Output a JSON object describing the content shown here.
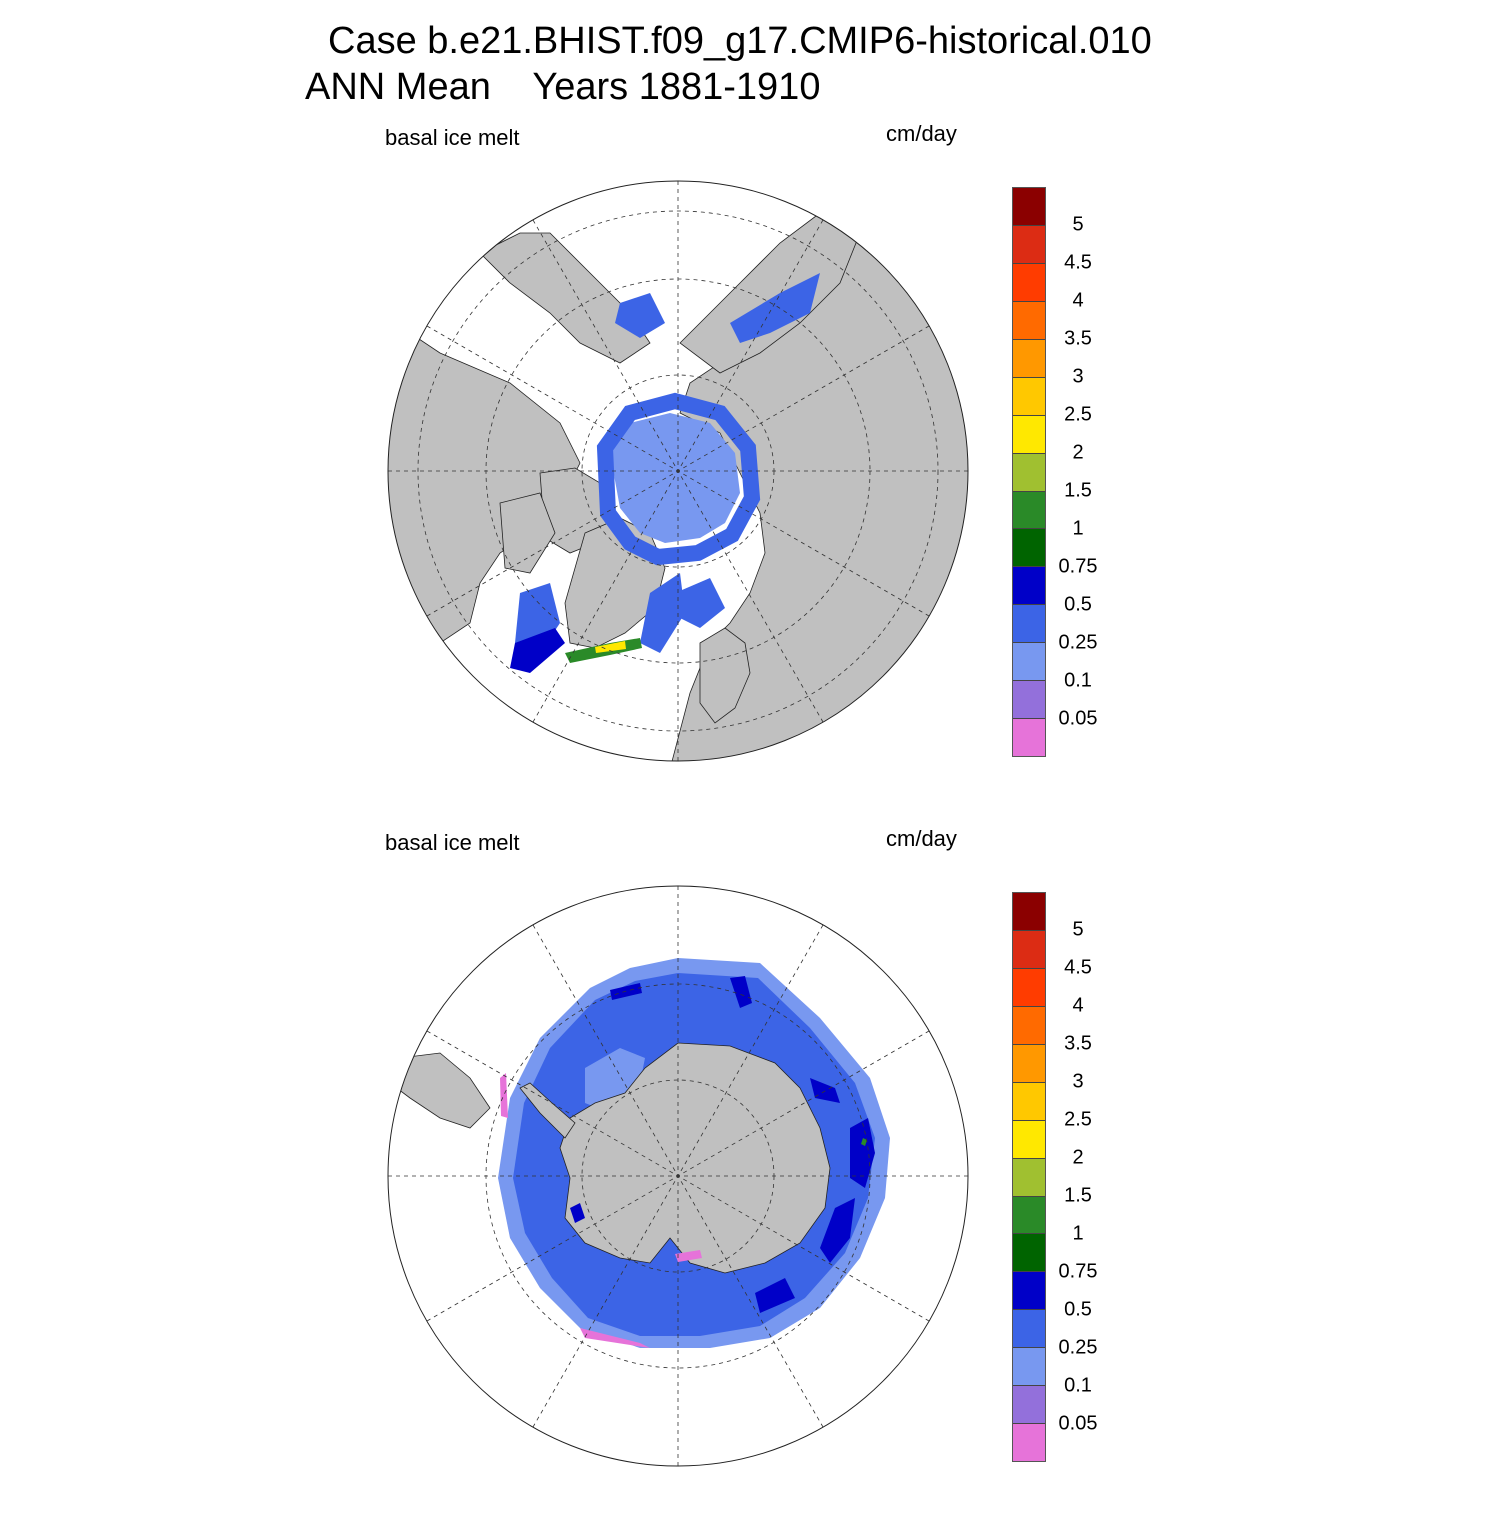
{
  "title": {
    "line1": "Case b.e21.BHIST.f09_g17.CMIP6-historical.010",
    "line2": "ANN Mean    Years 1881-1910"
  },
  "panels": [
    {
      "id": "north",
      "hemisphere": "Northern Hemisphere",
      "variable_label": "basal ice melt",
      "units_label": "cm/day"
    },
    {
      "id": "south",
      "hemisphere": "Southern Hemisphere",
      "variable_label": "basal ice melt",
      "units_label": "cm/day"
    }
  ],
  "colorbar": {
    "levels": [
      "5",
      "4.5",
      "4",
      "3.5",
      "3",
      "2.5",
      "2",
      "1.5",
      "1",
      "0.75",
      "0.5",
      "0.25",
      "0.1",
      "0.05"
    ],
    "colors_top_to_bottom": [
      "#8b0000",
      "#dc2c14",
      "#ff3c00",
      "#ff6a00",
      "#ff9800",
      "#ffc800",
      "#ffe800",
      "#a0c030",
      "#2a8a28",
      "#006400",
      "#0000c8",
      "#3c64e6",
      "#7898f0",
      "#9370db",
      "#e673d9"
    ]
  },
  "colors": {
    "land": "#c0c0c0",
    "ocean": "#ffffff",
    "grid": "#333333"
  }
}
